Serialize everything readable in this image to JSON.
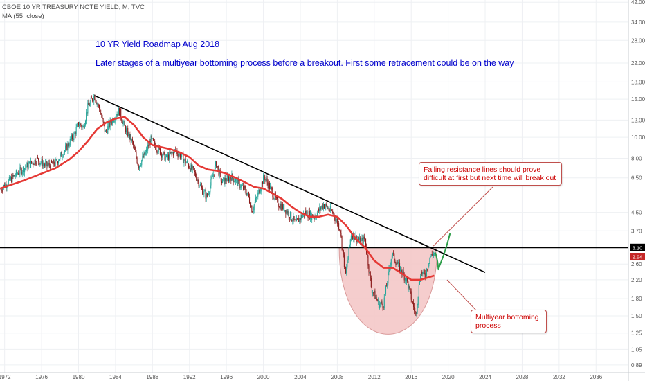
{
  "header": {
    "symbol_line": "CBOE 10 YR TREASURY NOTE YIELD, M, TVC",
    "indicator_line": "MA (55, close)"
  },
  "annotations": {
    "title": "10 YR Yield Roadmap Aug 2018",
    "subtitle": "Later stages of a multiyear bottoming process before a breakout. First some retracement could be on the way",
    "resistance_note": "Falling resistance lines should prove difficult at first but next time will break out",
    "bottoming_note": "Multiyear bottoming process"
  },
  "colors": {
    "up": "#26a69a",
    "down": "#8b1a1a",
    "ma": "#e53935",
    "trendline": "#000000",
    "projection": "#2e9e4a",
    "cup_fill": "#f3c4c4",
    "title_text": "#0000cc",
    "callout_text": "#cc0000"
  },
  "chart_data": {
    "type": "line",
    "x_scale": "time",
    "y_scale": "log",
    "grid": true,
    "x_ticks": [
      "1972",
      "1976",
      "1980",
      "1984",
      "1988",
      "1992",
      "1996",
      "2000",
      "2004",
      "2008",
      "2012",
      "2016",
      "2020",
      "2024",
      "2028",
      "2032",
      "2036"
    ],
    "y_ticks": [
      "42.00",
      "34.00",
      "28.00",
      "22.00",
      "18.00",
      "15.00",
      "12.00",
      "10.00",
      "8.00",
      "6.50",
      "4.50",
      "3.70",
      "2.60",
      "2.20",
      "1.80",
      "1.50",
      "1.25",
      "1.05",
      "0.89"
    ],
    "xlim": [
      1971.5,
      2039.5
    ],
    "ylim": [
      0.82,
      43
    ],
    "last_price": "2.94",
    "resistance_level": "3.10",
    "series": [
      {
        "name": "CBOE 10 YR TREASURY NOTE YIELD",
        "style": "candles",
        "x": [
          1971.5,
          1972.5,
          1973.5,
          1974.5,
          1975.5,
          1976.5,
          1977.5,
          1978.5,
          1979.5,
          1980.0,
          1980.5,
          1981.0,
          1981.7,
          1982.3,
          1982.9,
          1983.5,
          1984.4,
          1985.0,
          1985.8,
          1986.5,
          1987.3,
          1987.8,
          1988.5,
          1989.5,
          1990.5,
          1991.5,
          1992.5,
          1993.5,
          1993.9,
          1994.9,
          1995.5,
          1996.5,
          1997.5,
          1998.3,
          1998.8,
          1999.5,
          2000.1,
          2000.5,
          2001.5,
          2002.5,
          2003.5,
          2004.5,
          2005.5,
          2006.5,
          2007.5,
          2008.3,
          2008.9,
          2009.5,
          2010.5,
          2011.0,
          2011.7,
          2012.5,
          2013.0,
          2013.9,
          2014.5,
          2015.5,
          2016.5,
          2017.0,
          2017.5,
          2018.0,
          2018.6
        ],
        "y": [
          5.7,
          6.3,
          6.9,
          7.4,
          7.9,
          7.4,
          7.6,
          8.7,
          10.2,
          11.6,
          11.1,
          13.8,
          15.6,
          13.4,
          10.5,
          11.8,
          13.3,
          11.1,
          9.5,
          7.4,
          8.5,
          9.8,
          8.9,
          8.0,
          8.7,
          7.8,
          6.9,
          5.6,
          5.3,
          7.6,
          6.2,
          6.6,
          6.0,
          5.5,
          4.6,
          5.6,
          6.6,
          6.1,
          5.0,
          4.6,
          4.0,
          4.5,
          4.3,
          4.9,
          4.5,
          3.8,
          2.3,
          3.6,
          3.3,
          3.4,
          2.0,
          1.7,
          1.7,
          2.9,
          2.6,
          2.2,
          1.5,
          2.4,
          2.3,
          2.8,
          2.94
        ]
      },
      {
        "name": "MA (55, close)",
        "style": "line",
        "x": [
          1971.5,
          1974.0,
          1976.0,
          1977.5,
          1979.0,
          1980.0,
          1981.0,
          1982.0,
          1983.0,
          1984.0,
          1985.0,
          1986.0,
          1987.0,
          1988.0,
          1989.0,
          1990.0,
          1991.0,
          1992.0,
          1993.0,
          1994.0,
          1995.0,
          1996.0,
          1997.0,
          1998.0,
          1999.0,
          2000.0,
          2001.0,
          2002.0,
          2003.0,
          2004.0,
          2005.0,
          2006.0,
          2007.0,
          2008.0,
          2009.0,
          2010.0,
          2011.0,
          2012.0,
          2013.0,
          2014.0,
          2015.0,
          2016.0,
          2017.0,
          2018.5
        ],
        "y": [
          5.8,
          6.3,
          6.8,
          7.2,
          7.9,
          8.6,
          9.6,
          10.9,
          11.7,
          12.2,
          12.4,
          11.4,
          10.0,
          9.2,
          9.0,
          8.8,
          8.5,
          8.1,
          7.4,
          7.1,
          7.0,
          6.8,
          6.5,
          6.2,
          5.9,
          5.8,
          5.5,
          5.2,
          4.8,
          4.5,
          4.3,
          4.3,
          4.4,
          4.3,
          3.9,
          3.4,
          3.1,
          2.7,
          2.5,
          2.5,
          2.35,
          2.2,
          2.2,
          2.3
        ]
      },
      {
        "name": "Projection",
        "style": "line",
        "x": [
          2018.6,
          2019.0,
          2019.5,
          2020.2
        ],
        "y": [
          2.94,
          2.5,
          2.75,
          3.6
        ]
      }
    ]
  }
}
